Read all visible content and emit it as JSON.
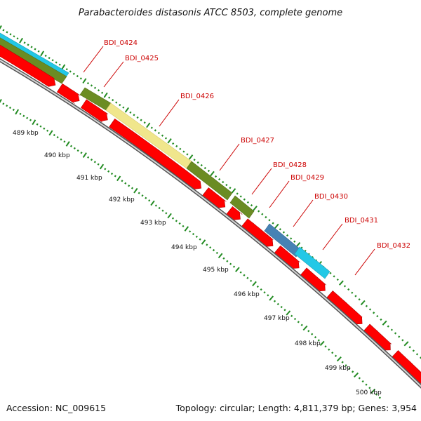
{
  "title": "Parabacteroides distasonis ATCC 8503, complete genome",
  "footer": {
    "accession": "Accession: NC_009615",
    "topology": "Topology: circular; Length: 4,811,379 bp; Genes: 3,954"
  },
  "ticks": [
    "489 kbp",
    "490 kbp",
    "491 kbp",
    "492 kbp",
    "493 kbp",
    "494 kbp",
    "495 kbp",
    "496 kbp",
    "497 kbp",
    "498 kbp",
    "499 kbp",
    "500 kbp"
  ],
  "genes": [
    "BDI_0424",
    "BDI_0425",
    "BDI_0426",
    "BDI_0427",
    "BDI_0428",
    "BDI_0429",
    "BDI_0430",
    "BDI_0431",
    "BDI_0432"
  ],
  "colors": {
    "cds": "#ff0000",
    "cyan": "#22c8e6",
    "olive": "#6b8c23",
    "khaki": "#f0e68c",
    "steelblue": "#4682b4",
    "backbone": "#7a7a7a",
    "label": "#cc0000",
    "tick": "#228b22"
  }
}
